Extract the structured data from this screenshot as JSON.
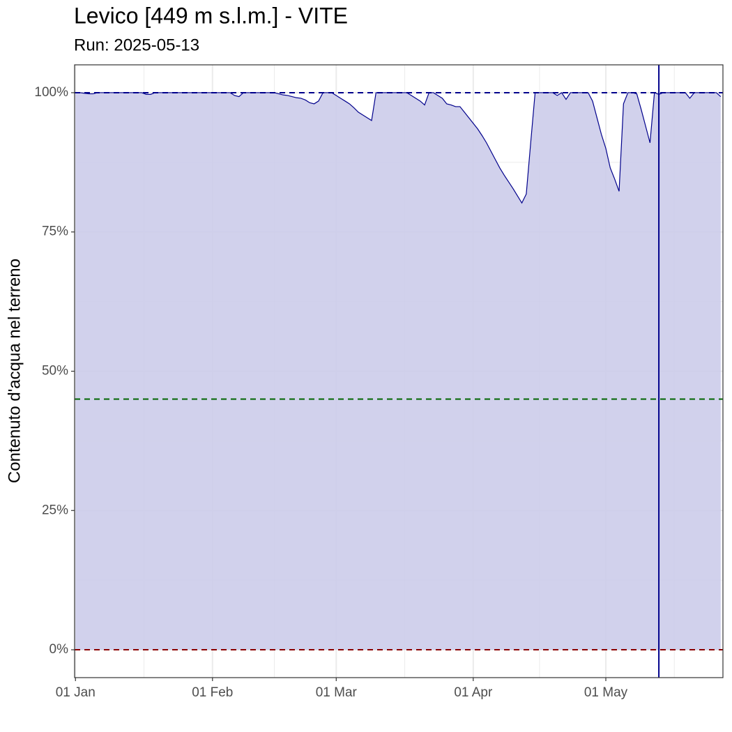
{
  "chart_data": {
    "type": "area",
    "title": "Levico [449 m s.l.m.] - VITE",
    "subtitle": "Run: 2025-05-13",
    "y_label": "Contenuto d'acqua nel terreno",
    "x": [
      0,
      1,
      2,
      3,
      4,
      5,
      6,
      7,
      8,
      9,
      10,
      11,
      12,
      13,
      14,
      15,
      16,
      17,
      18,
      19,
      20,
      21,
      22,
      23,
      24,
      25,
      26,
      27,
      28,
      29,
      30,
      31,
      32,
      33,
      34,
      35,
      36,
      37,
      38,
      39,
      40,
      41,
      42,
      43,
      44,
      45,
      46,
      47,
      48,
      49,
      50,
      51,
      52,
      53,
      54,
      55,
      56,
      57,
      58,
      59,
      60,
      61,
      62,
      63,
      64,
      65,
      66,
      67,
      68,
      69,
      70,
      71,
      72,
      73,
      74,
      75,
      76,
      77,
      78,
      79,
      80,
      81,
      82,
      83,
      84,
      85,
      86,
      87,
      88,
      89,
      90,
      91,
      92,
      93,
      94,
      95,
      96,
      97,
      98,
      99,
      100,
      101,
      102,
      103,
      104,
      105,
      106,
      107,
      108,
      109,
      110,
      111,
      112,
      113,
      114,
      115,
      116,
      117,
      118,
      119,
      120,
      121,
      122,
      123,
      124,
      125,
      126,
      127,
      128,
      129,
      130,
      131,
      132,
      133,
      134,
      135,
      136,
      137,
      138,
      139,
      140,
      141,
      142,
      143,
      144,
      145,
      146
    ],
    "values": [
      100,
      100,
      99.9,
      99.8,
      99.8,
      100,
      100,
      100,
      100,
      100,
      100,
      100,
      100,
      100,
      100,
      100,
      99.7,
      99.7,
      100,
      100,
      100,
      100,
      100,
      100,
      100,
      100,
      100,
      100,
      100,
      100,
      100,
      100,
      100,
      100,
      100,
      100,
      99.5,
      99.3,
      100,
      100,
      100,
      100,
      100,
      100,
      100,
      100,
      99.8,
      99.6,
      99.5,
      99.3,
      99.1,
      99,
      98.7,
      98.2,
      98,
      98.5,
      100,
      100,
      100,
      99.5,
      99,
      98.5,
      98,
      97.3,
      96.5,
      96,
      95.5,
      95,
      100,
      100,
      100,
      100,
      100,
      100,
      100,
      100,
      99.5,
      99,
      98.5,
      97.8,
      100,
      100,
      99.5,
      99,
      98,
      97.8,
      97.5,
      97.5,
      96.5,
      95.5,
      94.5,
      93.5,
      92.3,
      91,
      89.5,
      88,
      86.5,
      85.2,
      84,
      82.8,
      81.5,
      80.2,
      81.8,
      91,
      100,
      100,
      100,
      100,
      100,
      99.5,
      100,
      98.8,
      100,
      100,
      100,
      100,
      100,
      98.5,
      95.5,
      92.5,
      90,
      86.5,
      84.5,
      82.3,
      98,
      100,
      100,
      99.8,
      97,
      94,
      91,
      100,
      99.7,
      100,
      100,
      100,
      100,
      100,
      100,
      99,
      100,
      100,
      100,
      100,
      100,
      100,
      99.3
    ],
    "line_color": "#00008b",
    "fill_color": "#ccccea",
    "xlim": [
      -0.2,
      146.5
    ],
    "xticks": [
      {
        "value": 0,
        "label": "01 Jan"
      },
      {
        "value": 31,
        "label": "01 Feb"
      },
      {
        "value": 59,
        "label": "01 Mar"
      },
      {
        "value": 90,
        "label": "01 Apr"
      },
      {
        "value": 120,
        "label": "01 May"
      }
    ],
    "xminor": [
      15.5,
      45,
      74.5,
      105,
      135.5
    ],
    "ylim": [
      -5,
      105
    ],
    "yticks": [
      {
        "value": 0,
        "label": "0%"
      },
      {
        "value": 25,
        "label": "25%"
      },
      {
        "value": 50,
        "label": "50%"
      },
      {
        "value": 75,
        "label": "75%"
      },
      {
        "value": 100,
        "label": "100%"
      }
    ],
    "yminor": [
      12.5,
      37.5,
      62.5,
      87.5
    ],
    "grid": true,
    "hlines": [
      {
        "value": 100,
        "color": "#00008b"
      },
      {
        "value": 45,
        "color": "#006400"
      },
      {
        "value": 0,
        "color": "#8b0000"
      }
    ],
    "vline": {
      "value": 132,
      "color": "#00008b"
    }
  }
}
